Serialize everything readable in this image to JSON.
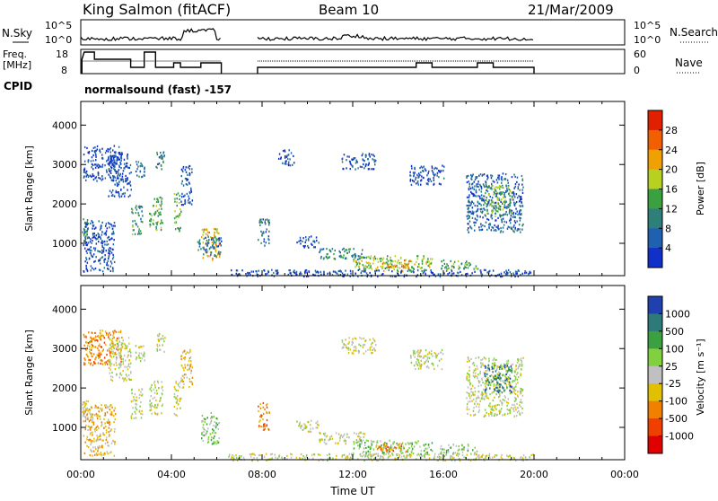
{
  "header": {
    "station": "King Salmon (fitACF)",
    "beam": "Beam 10",
    "date": "21/Mar/2009"
  },
  "top_panels": {
    "nsky_label": "N.Sky",
    "nsky_ticks": [
      "10^5",
      "10^0"
    ],
    "nsearch_label": "N.Search",
    "nsearch_ticks": [
      "10^5",
      "10^0"
    ],
    "freq_label_line1": "Freq.",
    "freq_label_line2": "[MHz]",
    "freq_ticks": [
      "18",
      "8"
    ],
    "nave_label": "Nave",
    "nave_ticks": [
      "60",
      "0"
    ],
    "cpid_label": "CPID",
    "cpid_text": "normalsound (fast) -157"
  },
  "colors": {
    "power": [
      "#1030c8",
      "#2060b0",
      "#2e7f7a",
      "#3aa040",
      "#b8d020",
      "#f0a000",
      "#f06000",
      "#e02000"
    ],
    "velocity": [
      "#2040b0",
      "#2e7a7a",
      "#3aa040",
      "#80d040",
      "#c0c0c0",
      "#e0c000",
      "#f08000",
      "#f04000",
      "#e00000"
    ]
  },
  "chart_data": [
    {
      "type": "heatmap",
      "name": "power",
      "ylabel": "Slant Range [km]",
      "yticks": [
        "4000",
        "3000",
        "2000",
        "1000"
      ],
      "ylim": [
        180,
        4600
      ],
      "xlim_hours": [
        0,
        24
      ],
      "colorbar_label": "Power [dB]",
      "colorbar_ticks": [
        "28",
        "24",
        "20",
        "16",
        "12",
        "8",
        "4"
      ],
      "colorbar_range": [
        0,
        32
      ],
      "blobs": [
        {
          "t": [
            0.05,
            0.3
          ],
          "r": [
            1150,
            1700
          ],
          "v": 12
        },
        {
          "t": [
            0.1,
            1.8
          ],
          "r": [
            2600,
            3500
          ],
          "v": 4
        },
        {
          "t": [
            0.1,
            1.5
          ],
          "r": [
            300,
            1600
          ],
          "v": 4
        },
        {
          "t": [
            1.2,
            2.2
          ],
          "r": [
            2200,
            3300
          ],
          "v": 4
        },
        {
          "t": [
            2.2,
            2.7
          ],
          "r": [
            1250,
            2000
          ],
          "v": 12
        },
        {
          "t": [
            2.4,
            2.8
          ],
          "r": [
            2700,
            3100
          ],
          "v": 8
        },
        {
          "t": [
            3.0,
            3.6
          ],
          "r": [
            1350,
            2200
          ],
          "v": 14
        },
        {
          "t": [
            3.3,
            3.7
          ],
          "r": [
            2900,
            3400
          ],
          "v": 10
        },
        {
          "t": [
            4.1,
            4.4
          ],
          "r": [
            1300,
            2300
          ],
          "v": 14
        },
        {
          "t": [
            4.4,
            4.9
          ],
          "r": [
            2000,
            3000
          ],
          "v": 4
        },
        {
          "t": [
            5.3,
            6.1
          ],
          "r": [
            600,
            1400
          ],
          "v": 20
        },
        {
          "t": [
            5.1,
            6.2
          ],
          "r": [
            700,
            1200
          ],
          "v": 8
        },
        {
          "t": [
            7.8,
            8.3
          ],
          "r": [
            950,
            1650
          ],
          "v": 8
        },
        {
          "t": [
            8.7,
            9.4
          ],
          "r": [
            3000,
            3400
          ],
          "v": 4
        },
        {
          "t": [
            9.5,
            10.5
          ],
          "r": [
            900,
            1200
          ],
          "v": 4
        },
        {
          "t": [
            10.5,
            12.5
          ],
          "r": [
            600,
            900
          ],
          "v": 10
        },
        {
          "t": [
            12.0,
            15.5
          ],
          "r": [
            300,
            700
          ],
          "v": 16
        },
        {
          "t": [
            13.0,
            14.5
          ],
          "r": [
            400,
            600
          ],
          "v": 20
        },
        {
          "t": [
            15.8,
            17.5
          ],
          "r": [
            350,
            600
          ],
          "v": 14
        },
        {
          "t": [
            11.5,
            13.0
          ],
          "r": [
            2900,
            3300
          ],
          "v": 4
        },
        {
          "t": [
            14.5,
            16.0
          ],
          "r": [
            2500,
            3000
          ],
          "v": 4
        },
        {
          "t": [
            17.0,
            19.5
          ],
          "r": [
            1300,
            2800
          ],
          "v": 6
        },
        {
          "t": [
            17.8,
            19.0
          ],
          "r": [
            1700,
            2500
          ],
          "v": 14
        },
        {
          "t": [
            6.5,
            20.0
          ],
          "r": [
            180,
            350
          ],
          "v": 4
        }
      ]
    },
    {
      "type": "heatmap",
      "name": "velocity",
      "ylabel": "Slant Range [km]",
      "yticks": [
        "4000",
        "3000",
        "2000",
        "1000"
      ],
      "ylim": [
        180,
        4600
      ],
      "xlim_hours": [
        0,
        24
      ],
      "xticks": [
        "00:00",
        "04:00",
        "08:00",
        "12:00",
        "16:00",
        "20:00",
        "00:00"
      ],
      "xlabel": "Time UT",
      "colorbar_label": "Velocity [m s⁻¹]",
      "colorbar_ticks": [
        "1000",
        "500",
        "100",
        "25",
        "-25",
        "-100",
        "-500",
        "-1000"
      ],
      "blobs": [
        {
          "t": [
            0.05,
            0.3
          ],
          "r": [
            1150,
            1700
          ],
          "v": 4
        },
        {
          "t": [
            0.1,
            1.8
          ],
          "r": [
            2600,
            3500
          ],
          "v": 6
        },
        {
          "t": [
            0.1,
            1.5
          ],
          "r": [
            300,
            1600
          ],
          "v": 5
        },
        {
          "t": [
            1.2,
            2.2
          ],
          "r": [
            2200,
            3300
          ],
          "v": 4
        },
        {
          "t": [
            2.2,
            2.7
          ],
          "r": [
            1250,
            2000
          ],
          "v": 4
        },
        {
          "t": [
            2.4,
            2.8
          ],
          "r": [
            2700,
            3100
          ],
          "v": 4
        },
        {
          "t": [
            3.0,
            3.6
          ],
          "r": [
            1350,
            2200
          ],
          "v": 4
        },
        {
          "t": [
            3.3,
            3.7
          ],
          "r": [
            2900,
            3400
          ],
          "v": 4
        },
        {
          "t": [
            4.1,
            4.4
          ],
          "r": [
            1300,
            2300
          ],
          "v": 4
        },
        {
          "t": [
            4.4,
            4.9
          ],
          "r": [
            2000,
            3000
          ],
          "v": 5
        },
        {
          "t": [
            5.3,
            6.1
          ],
          "r": [
            600,
            1400
          ],
          "v": 3
        },
        {
          "t": [
            7.8,
            8.3
          ],
          "r": [
            950,
            1650
          ],
          "v": 6
        },
        {
          "t": [
            9.5,
            10.5
          ],
          "r": [
            900,
            1200
          ],
          "v": 4
        },
        {
          "t": [
            10.5,
            12.5
          ],
          "r": [
            600,
            900
          ],
          "v": 4
        },
        {
          "t": [
            12.0,
            15.5
          ],
          "r": [
            300,
            700
          ],
          "v": 3
        },
        {
          "t": [
            13.0,
            14.5
          ],
          "r": [
            400,
            600
          ],
          "v": 6
        },
        {
          "t": [
            15.8,
            17.5
          ],
          "r": [
            350,
            600
          ],
          "v": 3
        },
        {
          "t": [
            11.5,
            13.0
          ],
          "r": [
            2900,
            3300
          ],
          "v": 4
        },
        {
          "t": [
            14.5,
            16.0
          ],
          "r": [
            2500,
            3000
          ],
          "v": 4
        },
        {
          "t": [
            17.0,
            19.5
          ],
          "r": [
            1300,
            2800
          ],
          "v": 4
        },
        {
          "t": [
            17.8,
            19.0
          ],
          "r": [
            1900,
            2600
          ],
          "v": 1
        },
        {
          "t": [
            6.5,
            20.0
          ],
          "r": [
            180,
            350
          ],
          "v": 4
        }
      ]
    }
  ]
}
